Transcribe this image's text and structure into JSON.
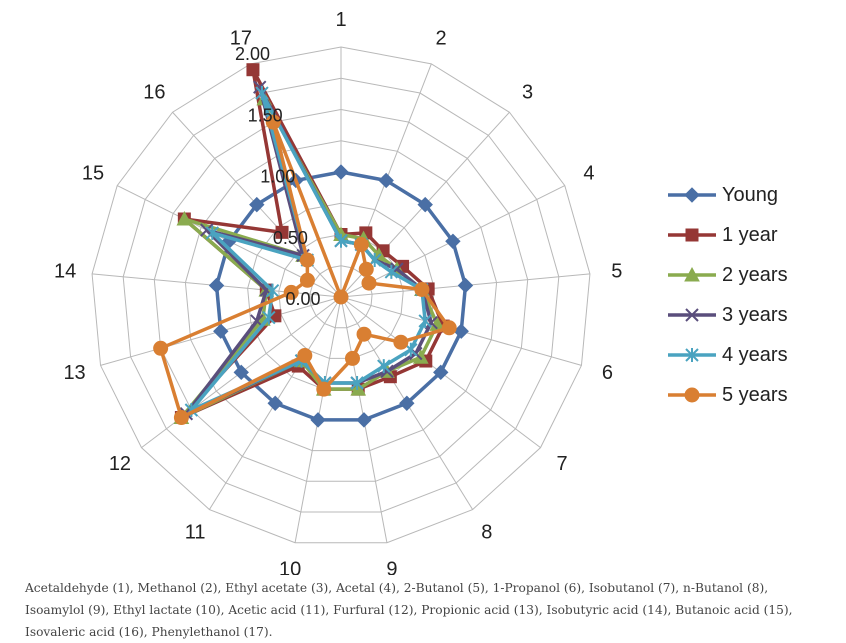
{
  "chart_data": {
    "type": "radar",
    "axes": [
      "1",
      "2",
      "3",
      "4",
      "5",
      "6",
      "7",
      "8",
      "9",
      "10",
      "11",
      "12",
      "13",
      "14",
      "15",
      "16",
      "17"
    ],
    "rlim": [
      0,
      2.0
    ],
    "rticks": [
      "0.00",
      "0.50",
      "1.00",
      "1.50",
      "2.00"
    ],
    "grid": true,
    "legend_position": "right",
    "series": [
      {
        "name": "Young",
        "color": "#4a6fa5",
        "marker": "diamond",
        "values": [
          1.0,
          1.0,
          1.0,
          1.0,
          1.0,
          1.0,
          1.0,
          1.0,
          1.0,
          1.0,
          1.0,
          1.0,
          1.0,
          1.0,
          1.0,
          1.0,
          1.0
        ]
      },
      {
        "name": "1 year",
        "color": "#953735",
        "marker": "square",
        "values": [
          0.5,
          0.55,
          0.5,
          0.55,
          0.7,
          0.85,
          0.85,
          0.75,
          0.75,
          0.75,
          0.65,
          1.6,
          0.55,
          0.6,
          1.4,
          0.7,
          1.95
        ]
      },
      {
        "name": "2 years",
        "color": "#8aab4f",
        "marker": "triangle",
        "values": [
          0.5,
          0.5,
          0.45,
          0.5,
          0.65,
          0.8,
          0.8,
          0.7,
          0.75,
          0.75,
          0.6,
          1.6,
          0.65,
          0.6,
          1.4,
          0.45,
          1.7
        ]
      },
      {
        "name": "3 years",
        "color": "#5a4e7c",
        "marker": "x",
        "values": [
          0.45,
          0.45,
          0.4,
          0.5,
          0.65,
          0.75,
          0.75,
          0.7,
          0.7,
          0.7,
          0.6,
          1.55,
          0.7,
          0.6,
          1.2,
          0.45,
          1.8
        ]
      },
      {
        "name": "4 years",
        "color": "#4aa3c0",
        "marker": "asterisk",
        "values": [
          0.45,
          0.45,
          0.4,
          0.45,
          0.65,
          0.7,
          0.7,
          0.65,
          0.7,
          0.7,
          0.6,
          1.5,
          0.6,
          0.55,
          1.15,
          0.4,
          1.75
        ]
      },
      {
        "name": "5 years",
        "color": "#d97f32",
        "marker": "circle",
        "values": [
          0.0,
          0.45,
          0.3,
          0.25,
          0.65,
          0.9,
          0.6,
          0.35,
          0.5,
          0.75,
          0.55,
          1.6,
          1.5,
          0.4,
          0.3,
          0.4,
          1.5
        ]
      }
    ]
  },
  "caption": {
    "line1": "Acetaldehyde (1), Methanol (2), Ethyl acetate (3), Acetal (4), 2-Butanol (5), 1-Propanol (6), Isobutanol (7), n-Butanol (8),",
    "line2": "Isoamylol (9), Ethyl lactate (10), Acetic acid (11), Furfural (12), Propionic acid (13), Isobutyric acid (14), Butanoic acid (15),",
    "line3": "Isovaleric acid (16), Phenylethanol (17)."
  }
}
